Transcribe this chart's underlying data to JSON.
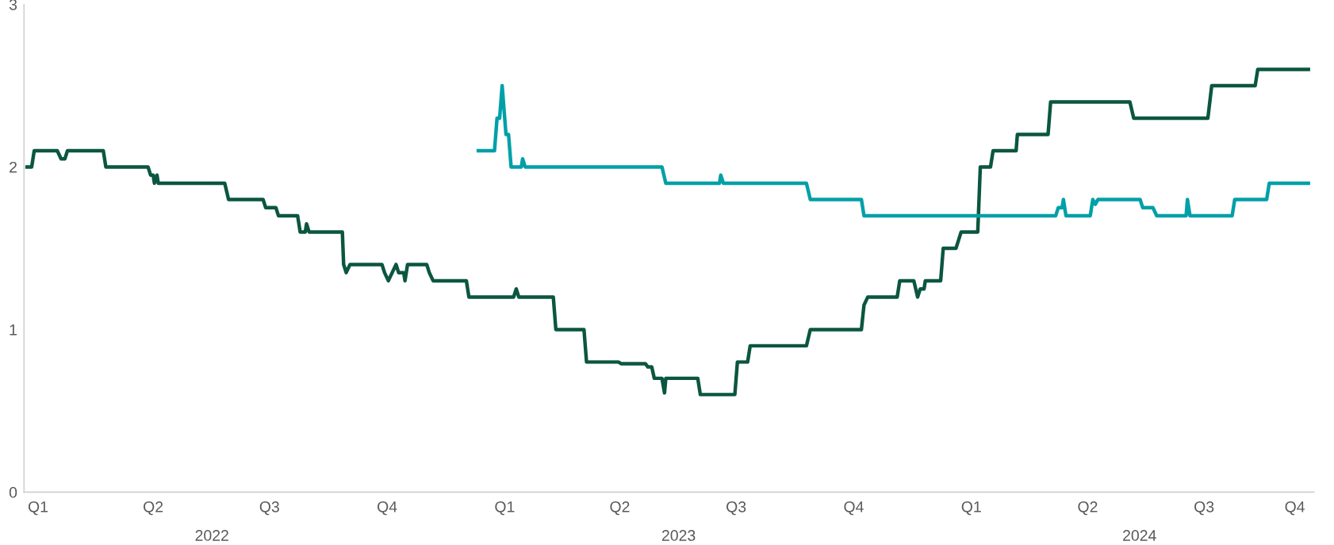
{
  "chart_data": {
    "type": "line",
    "xlim": [
      "2021-12-21",
      "2024-09-25"
    ],
    "ylim": [
      0,
      3
    ],
    "yticks": [
      0,
      1,
      2,
      3
    ],
    "xticks": [
      {
        "value": "2022-01-01",
        "label": "Q1"
      },
      {
        "value": "2022-04-01",
        "label": "Q2"
      },
      {
        "value": "2022-07-01",
        "label": "Q3"
      },
      {
        "value": "2022-10-01",
        "label": "Q4"
      },
      {
        "value": "2023-01-01",
        "label": "Q1"
      },
      {
        "value": "2023-04-01",
        "label": "Q2"
      },
      {
        "value": "2023-07-01",
        "label": "Q3"
      },
      {
        "value": "2023-10-01",
        "label": "Q4"
      },
      {
        "value": "2024-01-01",
        "label": "Q1"
      },
      {
        "value": "2024-04-01",
        "label": "Q2"
      },
      {
        "value": "2024-07-01",
        "label": "Q3"
      },
      {
        "value": "2024-09-10",
        "label": "Q4"
      }
    ],
    "annotations": [
      "2022",
      "2023",
      "2024"
    ],
    "grid": false,
    "marker": "none",
    "line_style": "solid",
    "series": [
      {
        "color": "#0b5640",
        "x": [
          "2021-12-22",
          "2021-12-27",
          "2021-12-29",
          "2022-01-16",
          "2022-01-19",
          "2022-01-22",
          "2022-01-24",
          "2022-02-21",
          "2022-02-23",
          "2022-03-28",
          "2022-03-30",
          "2022-04-01",
          "2022-04-02",
          "2022-04-04",
          "2022-04-05",
          "2022-05-27",
          "2022-05-30",
          "2022-06-26",
          "2022-06-28",
          "2022-07-06",
          "2022-07-08",
          "2022-07-23",
          "2022-07-25",
          "2022-07-29",
          "2022-07-30",
          "2022-08-01",
          "2022-08-27",
          "2022-08-28",
          "2022-08-30",
          "2022-09-02",
          "2022-09-27",
          "2022-09-29",
          "2022-10-02",
          "2022-10-05",
          "2022-10-08",
          "2022-10-10",
          "2022-10-14",
          "2022-10-15",
          "2022-10-17",
          "2022-11-01",
          "2022-11-03",
          "2022-11-06",
          "2022-12-02",
          "2022-12-04",
          "2023-01-08",
          "2023-01-10",
          "2023-01-12",
          "2023-02-08",
          "2023-02-10",
          "2023-03-04",
          "2023-03-06",
          "2023-03-31",
          "2023-04-02",
          "2023-04-21",
          "2023-04-23",
          "2023-04-26",
          "2023-04-28",
          "2023-05-04",
          "2023-05-06",
          "2023-05-07",
          "2023-06-01",
          "2023-06-03",
          "2023-06-30",
          "2023-07-02",
          "2023-07-10",
          "2023-07-12",
          "2023-08-25",
          "2023-08-28",
          "2023-10-07",
          "2023-10-09",
          "2023-10-12",
          "2023-11-04",
          "2023-11-06",
          "2023-11-17",
          "2023-11-20",
          "2023-11-22",
          "2023-11-25",
          "2023-11-26",
          "2023-12-08",
          "2023-12-10",
          "2023-12-20",
          "2023-12-22",
          "2023-12-24",
          "2024-01-06",
          "2024-01-08",
          "2024-01-16",
          "2024-01-18",
          "2024-02-05",
          "2024-02-06",
          "2024-03-01",
          "2024-03-03",
          "2024-05-04",
          "2024-05-07",
          "2024-07-04",
          "2024-07-07",
          "2024-08-10",
          "2024-08-12",
          "2024-09-22"
        ],
        "values": [
          2.0,
          2.0,
          2.1,
          2.1,
          2.05,
          2.05,
          2.1,
          2.1,
          2.0,
          2.0,
          1.95,
          1.95,
          1.9,
          1.95,
          1.9,
          1.9,
          1.8,
          1.8,
          1.75,
          1.75,
          1.7,
          1.7,
          1.6,
          1.6,
          1.65,
          1.6,
          1.6,
          1.4,
          1.35,
          1.4,
          1.4,
          1.35,
          1.3,
          1.35,
          1.4,
          1.35,
          1.35,
          1.3,
          1.4,
          1.4,
          1.35,
          1.3,
          1.3,
          1.2,
          1.2,
          1.25,
          1.2,
          1.2,
          1.0,
          1.0,
          0.8,
          0.8,
          0.79,
          0.79,
          0.77,
          0.77,
          0.7,
          0.7,
          0.61,
          0.7,
          0.7,
          0.6,
          0.6,
          0.8,
          0.8,
          0.9,
          0.9,
          1.0,
          1.0,
          1.15,
          1.2,
          1.2,
          1.3,
          1.3,
          1.2,
          1.25,
          1.25,
          1.3,
          1.3,
          1.5,
          1.5,
          1.55,
          1.6,
          1.6,
          2.0,
          2.0,
          2.1,
          2.1,
          2.2,
          2.2,
          2.4,
          2.4,
          2.3,
          2.3,
          2.5,
          2.5,
          2.6,
          2.6
        ]
      },
      {
        "color": "#00a0a8",
        "x": [
          "2022-12-10",
          "2022-12-24",
          "2022-12-26",
          "2022-12-28",
          "2022-12-30",
          "2023-01-02",
          "2023-01-04",
          "2023-01-06",
          "2023-01-14",
          "2023-01-15",
          "2023-01-17",
          "2023-05-04",
          "2023-05-07",
          "2023-06-18",
          "2023-06-19",
          "2023-06-21",
          "2023-08-25",
          "2023-08-28",
          "2023-10-07",
          "2023-10-09",
          "2024-03-07",
          "2024-03-09",
          "2024-03-12",
          "2024-03-13",
          "2024-03-15",
          "2024-04-03",
          "2024-04-05",
          "2024-04-07",
          "2024-04-09",
          "2024-05-12",
          "2024-05-14",
          "2024-05-22",
          "2024-05-25",
          "2024-06-17",
          "2024-06-18",
          "2024-06-20",
          "2024-07-23",
          "2024-07-25",
          "2024-08-19",
          "2024-08-21",
          "2024-09-22"
        ],
        "values": [
          2.1,
          2.1,
          2.3,
          2.3,
          2.5,
          2.2,
          2.2,
          2.0,
          2.0,
          2.05,
          2.0,
          2.0,
          1.9,
          1.9,
          1.95,
          1.9,
          1.9,
          1.8,
          1.8,
          1.7,
          1.7,
          1.75,
          1.75,
          1.8,
          1.7,
          1.7,
          1.8,
          1.77,
          1.8,
          1.8,
          1.75,
          1.75,
          1.7,
          1.7,
          1.8,
          1.7,
          1.7,
          1.8,
          1.8,
          1.9,
          1.9
        ]
      }
    ]
  }
}
